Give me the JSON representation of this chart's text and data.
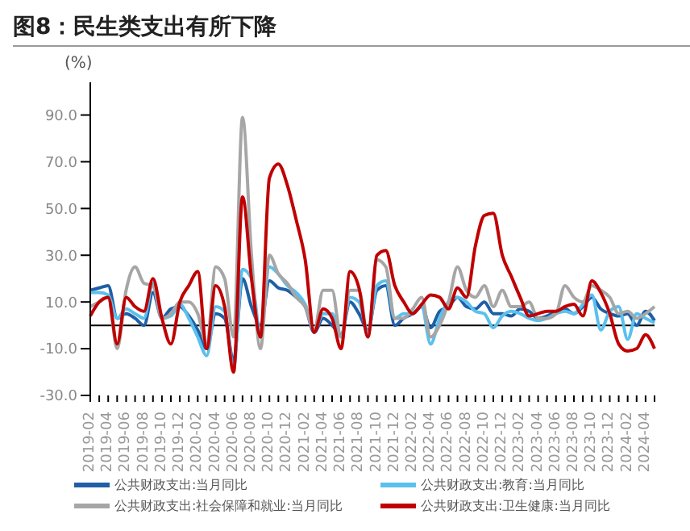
{
  "chart_data": {
    "type": "line",
    "title": "图8：民生类支出有所下降",
    "ylabel": "(%)",
    "categories": [
      "2019-02",
      null,
      "2019-04",
      null,
      "2019-06",
      null,
      "2019-08",
      null,
      "2019-10",
      null,
      "2019-12",
      null,
      "2020-02",
      null,
      "2020-04",
      null,
      "2020-06",
      null,
      "2020-08",
      null,
      "2020-10",
      null,
      "2020-12",
      null,
      "2021-02",
      null,
      "2021-04",
      null,
      "2021-06",
      null,
      "2021-08",
      null,
      "2021-10",
      null,
      "2021-12",
      null,
      "2022-02",
      null,
      "2022-04",
      null,
      "2022-06",
      null,
      "2022-08",
      null,
      "2022-10",
      null,
      "2022-12",
      null,
      "2023-02",
      null,
      "2023-04",
      null,
      "2023-06",
      null,
      "2023-08",
      null,
      "2023-10",
      null,
      "2023-12",
      null,
      "2024-02",
      null,
      "2024-04",
      null
    ],
    "series": [
      {
        "name": "公共财政支出:当月同比",
        "color": "#1f5fa6",
        "values": [
          15,
          16,
          17,
          3,
          5,
          3,
          0,
          14,
          3,
          7,
          8,
          4,
          -2,
          -10,
          5,
          3,
          -15,
          20,
          8,
          0,
          19,
          16,
          15,
          12,
          8,
          -3,
          3,
          0,
          -4,
          10,
          5,
          -2,
          15,
          17,
          0,
          3,
          5,
          8,
          -1,
          6,
          8,
          12,
          8,
          7,
          10,
          5,
          5,
          4,
          7,
          6,
          3,
          4,
          6,
          7,
          5,
          8,
          12,
          7,
          5,
          4,
          5,
          0,
          6,
          2
        ]
      },
      {
        "name": "公共财政支出:教育:当月同比",
        "color": "#5bc0ee",
        "values": [
          14,
          14,
          13,
          3,
          7,
          5,
          3,
          18,
          3,
          4,
          9,
          3,
          -5,
          -13,
          8,
          6,
          -18,
          24,
          20,
          -3,
          25,
          22,
          17,
          14,
          9,
          -2,
          5,
          5,
          -5,
          12,
          10,
          -3,
          17,
          19,
          3,
          5,
          5,
          8,
          -8,
          3,
          10,
          12,
          10,
          6,
          5,
          -1,
          4,
          6,
          5,
          3,
          2,
          3,
          5,
          6,
          5,
          9,
          13,
          -2,
          6,
          8,
          -6,
          5,
          3,
          1
        ]
      },
      {
        "name": "公共财政支出:社会保障和就业:当月同比",
        "color": "#a6a6a6",
        "values": [
          8,
          10,
          12,
          -10,
          15,
          25,
          18,
          17,
          3,
          5,
          10,
          10,
          5,
          -8,
          25,
          20,
          -5,
          89,
          30,
          -10,
          30,
          22,
          18,
          12,
          8,
          -2,
          15,
          15,
          -5,
          15,
          15,
          -5,
          28,
          25,
          3,
          3,
          7,
          12,
          -5,
          0,
          10,
          25,
          15,
          12,
          17,
          8,
          15,
          8,
          8,
          10,
          3,
          3,
          5,
          17,
          12,
          10,
          17,
          15,
          12,
          5,
          6,
          3,
          5,
          8
        ]
      },
      {
        "name": "公共财政支出:卫生健康:当月同比",
        "color": "#c00000",
        "values": [
          4,
          10,
          12,
          -8,
          12,
          8,
          6,
          20,
          3,
          -8,
          10,
          17,
          23,
          -10,
          17,
          8,
          -20,
          55,
          20,
          -5,
          63,
          69,
          60,
          45,
          28,
          -3,
          7,
          3,
          -10,
          23,
          16,
          -5,
          30,
          32,
          17,
          10,
          5,
          9,
          13,
          12,
          7,
          16,
          12,
          34,
          47,
          48,
          30,
          21,
          12,
          4,
          5,
          6,
          6,
          8,
          9,
          4,
          19,
          14,
          5,
          -8,
          -11,
          -10,
          -4,
          -10
        ]
      }
    ],
    "ylim": [
      -30,
      104
    ],
    "yticks": [
      {
        "value": -30,
        "label": "-30.0"
      },
      {
        "value": -10,
        "label": "-10.0"
      },
      {
        "value": 10,
        "label": "10.0"
      },
      {
        "value": 30,
        "label": "30.0"
      },
      {
        "value": 50,
        "label": "50.0"
      },
      {
        "value": 70,
        "label": "70.0"
      },
      {
        "value": 90,
        "label": "90.0"
      }
    ],
    "grid": false,
    "legend": "bottom",
    "marker": "none",
    "line_style": "solid"
  }
}
